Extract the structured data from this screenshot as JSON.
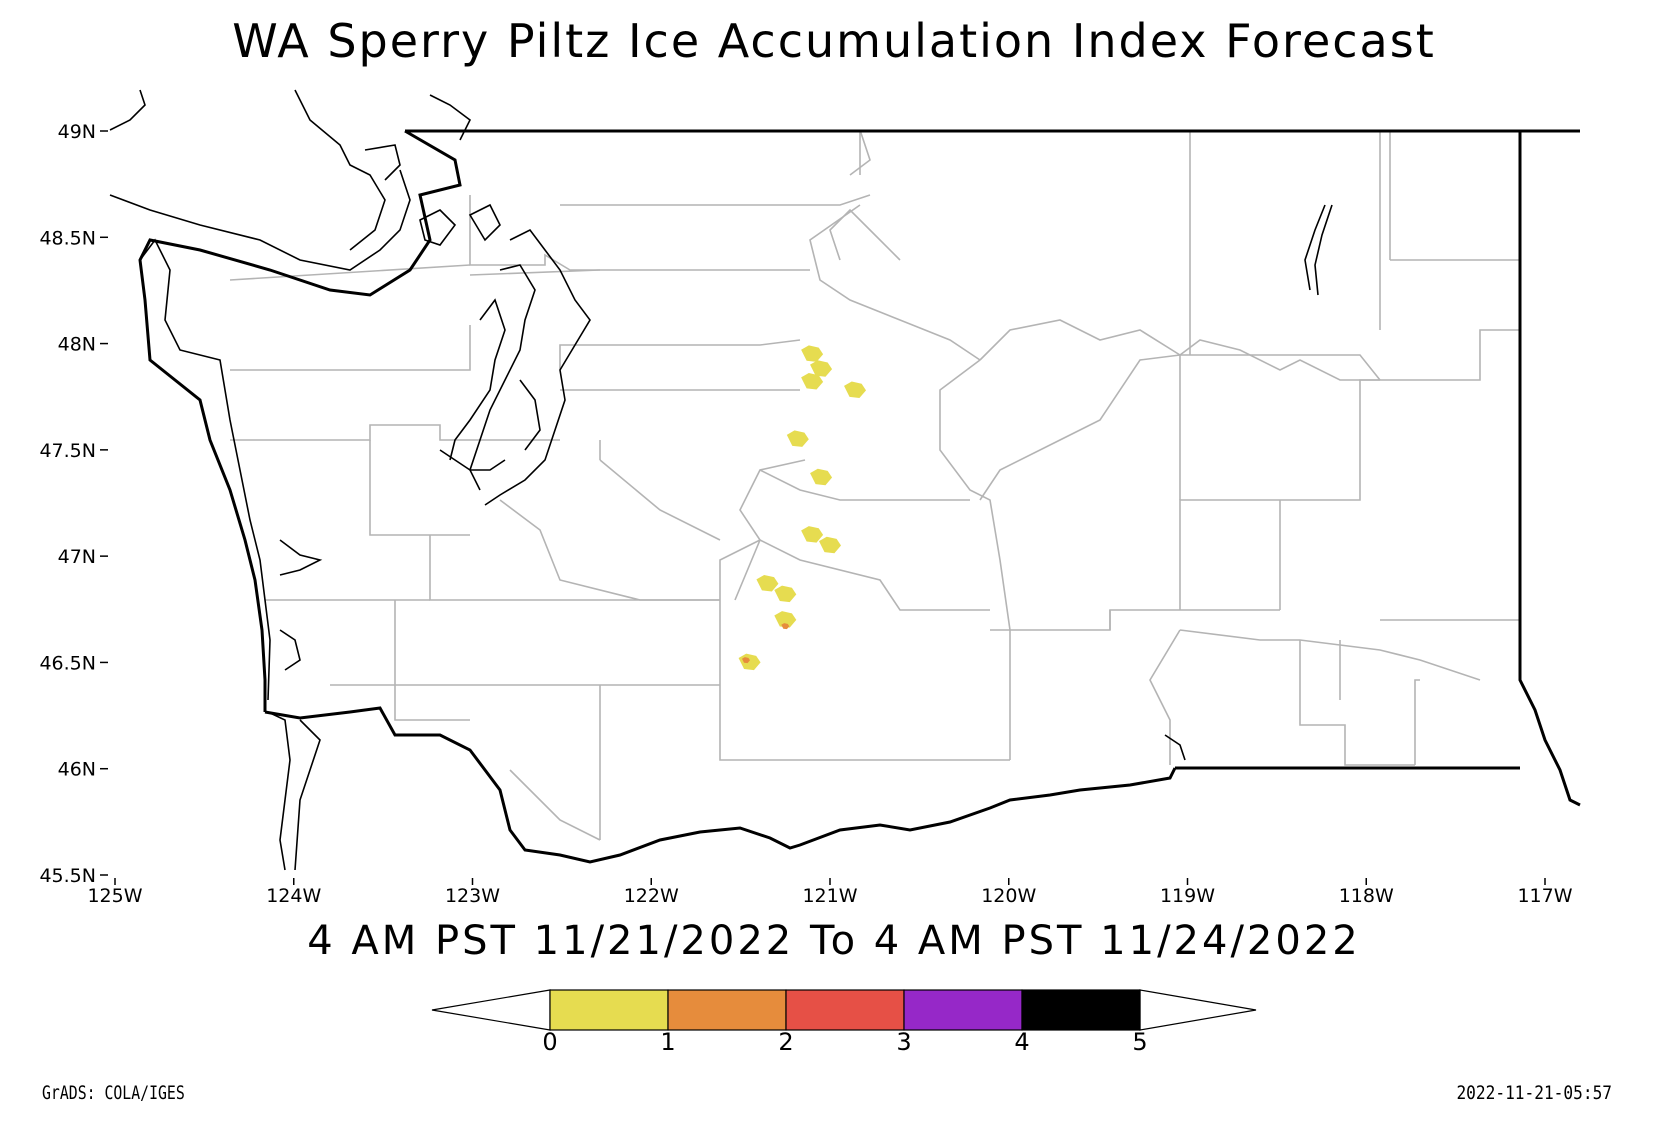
{
  "title": "WA Sperry Piltz Ice Accumulation Index Forecast",
  "valid_period": "4 AM PST 11/21/2022 To 4 AM PST 11/24/2022",
  "credit": "GrADS: COLA/IGES",
  "timestamp": "2022-11-21-05:57",
  "map": {
    "lat_labels": [
      "49N",
      "48.5N",
      "48N",
      "47.5N",
      "47N",
      "46.5N",
      "46N",
      "45.5N"
    ],
    "lon_labels": [
      "125W",
      "124W",
      "123W",
      "122W",
      "121W",
      "120W",
      "119W",
      "118W",
      "117W"
    ],
    "lat_range": [
      45.5,
      49
    ],
    "lon_range": [
      -125,
      -117
    ],
    "state_outline_color": "#000000",
    "county_line_color": "#b4b4b4"
  },
  "colorbar": {
    "labels": [
      "0",
      "1",
      "2",
      "3",
      "4",
      "5"
    ],
    "colors": [
      "#e6dc50",
      "#e68c3c",
      "#e65046",
      "#9628c8",
      "#000000"
    ]
  },
  "ice_regions": [
    {
      "level": 0,
      "lon": -121.1,
      "lat": 47.95
    },
    {
      "level": 0,
      "lon": -121.05,
      "lat": 47.88
    },
    {
      "level": 0,
      "lon": -121.1,
      "lat": 47.82
    },
    {
      "level": 0,
      "lon": -120.86,
      "lat": 47.78
    },
    {
      "level": 0,
      "lon": -121.18,
      "lat": 47.55
    },
    {
      "level": 0,
      "lon": -121.05,
      "lat": 47.37
    },
    {
      "level": 0,
      "lon": -121.1,
      "lat": 47.1
    },
    {
      "level": 0,
      "lon": -121.0,
      "lat": 47.05
    },
    {
      "level": 0,
      "lon": -121.35,
      "lat": 46.87
    },
    {
      "level": 0,
      "lon": -121.25,
      "lat": 46.82
    },
    {
      "level": 0,
      "lon": -121.25,
      "lat": 46.7
    },
    {
      "level": 1,
      "lon": -121.25,
      "lat": 46.67
    },
    {
      "level": 0,
      "lon": -121.45,
      "lat": 46.5
    },
    {
      "level": 1,
      "lon": -121.47,
      "lat": 46.51
    }
  ]
}
